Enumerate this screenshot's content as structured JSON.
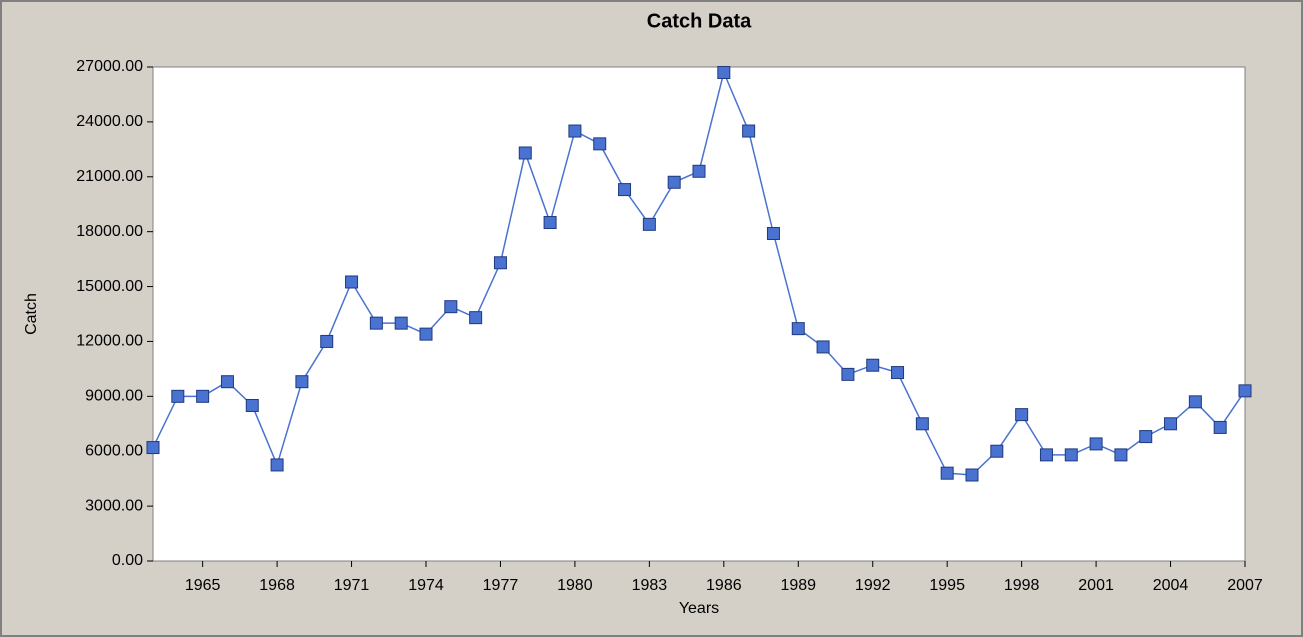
{
  "chart_data": {
    "type": "line",
    "title": "Catch Data",
    "xlabel": "Years",
    "ylabel": "Catch",
    "x": [
      1963,
      1964,
      1965,
      1966,
      1967,
      1968,
      1969,
      1970,
      1971,
      1972,
      1973,
      1974,
      1975,
      1976,
      1977,
      1978,
      1979,
      1980,
      1981,
      1982,
      1983,
      1984,
      1985,
      1986,
      1987,
      1988,
      1989,
      1990,
      1991,
      1992,
      1993,
      1994,
      1995,
      1996,
      1997,
      1998,
      1999,
      2000,
      2001,
      2002,
      2003,
      2004,
      2005,
      2006,
      2007
    ],
    "series": [
      {
        "name": "Catch",
        "color": "#4a72d0",
        "values": [
          6200,
          9000,
          9000,
          9800,
          8500,
          5250,
          9800,
          12000,
          15250,
          13000,
          13000,
          12400,
          13900,
          13300,
          16300,
          22300,
          18500,
          23500,
          22800,
          20300,
          18400,
          20700,
          21300,
          26700,
          23500,
          17900,
          12700,
          11700,
          10200,
          10700,
          10300,
          7500,
          4800,
          4700,
          6000,
          8000,
          5800,
          5800,
          6400,
          5800,
          6800,
          7500,
          8700,
          7300,
          9300
        ]
      }
    ],
    "xlim": [
      1963,
      2007
    ],
    "xticks": [
      1965,
      1968,
      1971,
      1974,
      1977,
      1980,
      1983,
      1986,
      1989,
      1992,
      1995,
      1998,
      2001,
      2004,
      2007
    ],
    "ylim": [
      0,
      27000
    ],
    "yticks": [
      {
        "value": 0,
        "label": "0.00"
      },
      {
        "value": 3000,
        "label": "3000.00"
      },
      {
        "value": 6000,
        "label": "6000.00"
      },
      {
        "value": 9000,
        "label": "9000.00"
      },
      {
        "value": 12000,
        "label": "12000.00"
      },
      {
        "value": 15000,
        "label": "15000.00"
      },
      {
        "value": 18000,
        "label": "18000.00"
      },
      {
        "value": 21000,
        "label": "21000.00"
      },
      {
        "value": 24000,
        "label": "24000.00"
      },
      {
        "value": 27000,
        "label": "27000.00"
      }
    ],
    "grid": false
  }
}
